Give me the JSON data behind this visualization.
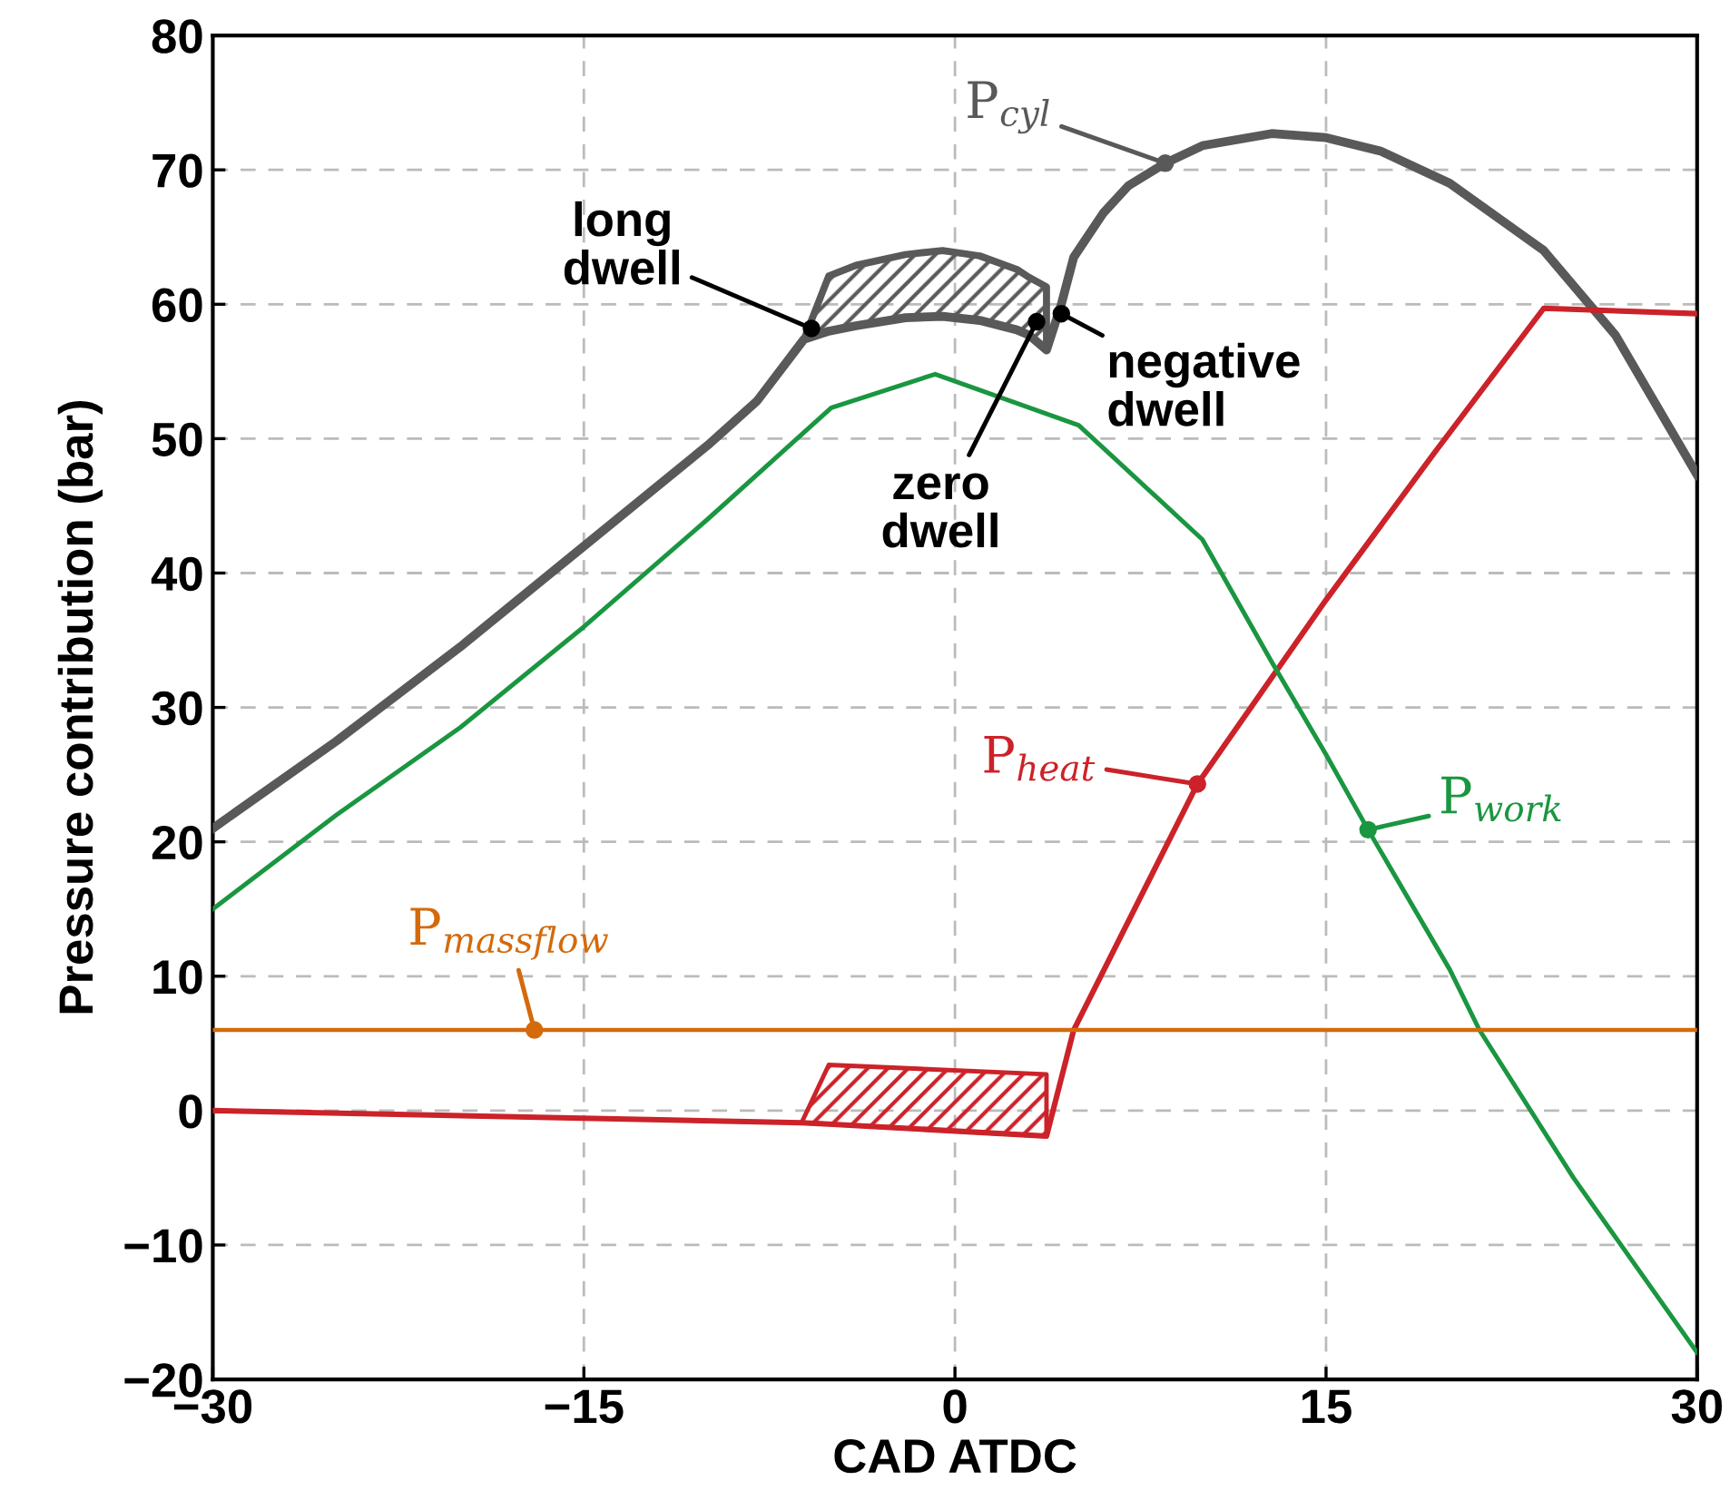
{
  "chart_data": {
    "type": "line",
    "xlabel": "CAD ATDC",
    "ylabel": "Pressure contribution (bar)",
    "xlim": [
      -30,
      30
    ],
    "xticks": [
      {
        "value": -30,
        "label": "−30"
      },
      {
        "value": -15,
        "label": "−15"
      },
      0,
      15,
      30
    ],
    "ylim": [
      -20,
      80
    ],
    "yticks": [
      {
        "value": -20,
        "label": "−20"
      },
      {
        "value": -10,
        "label": "−10"
      },
      0,
      10,
      20,
      30,
      40,
      50,
      60,
      70,
      80
    ],
    "grid": true,
    "line_style": "solid",
    "marker": "none",
    "legend": false,
    "series": [
      {
        "color": "#595959",
        "x": [
          -30,
          -25,
          -20,
          -15,
          -10,
          -8,
          -6.1,
          -5.1,
          -4,
          -2,
          -0.5,
          1,
          2.5,
          3,
          3.7,
          4.3,
          4.8,
          6,
          7,
          8.5,
          10,
          12.8,
          15,
          17.2,
          20,
          23.8,
          26.7,
          30
        ],
        "values": [
          21,
          27.5,
          34.5,
          42,
          49.5,
          52.8,
          57.4,
          58,
          58.4,
          59,
          59.1,
          58.8,
          58.1,
          57.7,
          56.6,
          60,
          63.5,
          66.8,
          68.8,
          70.5,
          71.8,
          72.7,
          72.4,
          71.4,
          69,
          64,
          57.7,
          47.3
        ],
        "lower": [
          null,
          null,
          null,
          null,
          null,
          null,
          57.4,
          58,
          58.4,
          59,
          59.1,
          58.8,
          58.1,
          57.7,
          56.6,
          null,
          null,
          null,
          null,
          null,
          null,
          null,
          null,
          null,
          null,
          null,
          null,
          null
        ],
        "upper": [
          null,
          null,
          null,
          null,
          null,
          null,
          57.4,
          62.1,
          62.9,
          63.7,
          64,
          63.6,
          62.6,
          62,
          61.3,
          null,
          null,
          null,
          null,
          null,
          null,
          null,
          null,
          null,
          null,
          null,
          null,
          null
        ]
      },
      {
        "color": "#cc2229",
        "x": [
          -30,
          -6.2,
          -5.1,
          3.7,
          4.8,
          9.8,
          15,
          19.4,
          23.8,
          30
        ],
        "values": [
          0,
          -0.9,
          -1,
          -1.9,
          6,
          24.3,
          38,
          49,
          59.7,
          59.3
        ],
        "lower": [
          null,
          -0.9,
          -1,
          -1.9,
          null,
          null,
          null,
          null,
          null,
          null
        ],
        "upper": [
          null,
          -0.9,
          3.4,
          2.7,
          null,
          null,
          null,
          null,
          null,
          null
        ]
      },
      {
        "color": "#1a9641",
        "x": [
          -30,
          -25,
          -20,
          -15,
          -10,
          -5,
          -0.8,
          5,
          10,
          12.8,
          15,
          16.7,
          20,
          21.2,
          25,
          30
        ],
        "values": [
          15,
          22,
          28.5,
          36,
          44,
          52.3,
          54.8,
          51,
          42.5,
          33.4,
          26.5,
          20.9,
          10.5,
          6,
          -5,
          -18
        ]
      },
      {
        "color": "#d46a0c",
        "x": [
          -30,
          30
        ],
        "values": [
          6,
          6
        ]
      }
    ],
    "annotations": [
      {
        "text": "P$_{cyl}$",
        "x": 8.5,
        "y": 70.5
      },
      {
        "text": "P$_{heat}$",
        "x": 9.8,
        "y": 24.3
      },
      {
        "text": "P$_{work}$",
        "x": 16.7,
        "y": 20.9
      },
      {
        "text": "P$_{massflow}$",
        "x": -17,
        "y": 6
      },
      {
        "text": "long\ndwell",
        "x": -5.8,
        "y": 58.2
      },
      {
        "text": "zero\ndwell",
        "x": 3.3,
        "y": 58.7
      },
      {
        "text": "negative\ndwell",
        "x": 4.3,
        "y": 59.3
      }
    ]
  }
}
